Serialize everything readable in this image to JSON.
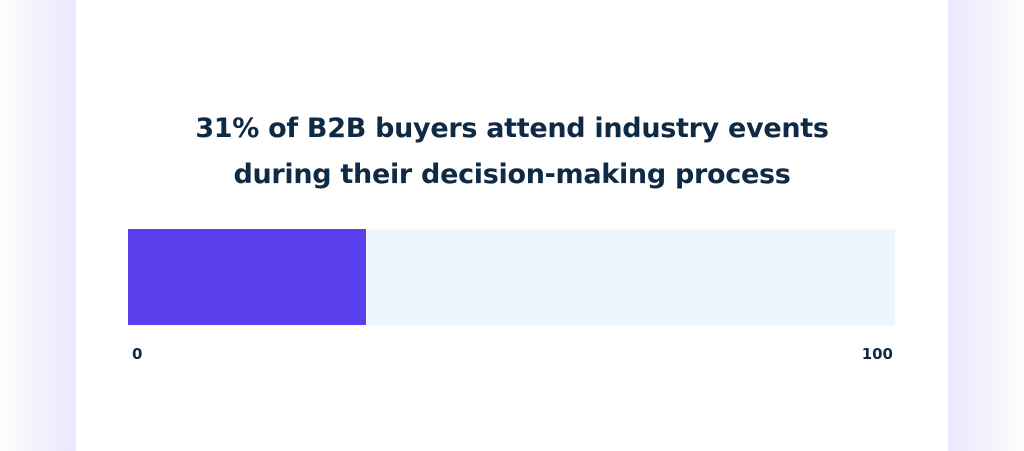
{
  "chart_data": {
    "type": "bar",
    "title_lines": [
      "31% of B2B buyers attend industry events",
      "during their decision-making process"
    ],
    "value": 31,
    "xlim": [
      0,
      100
    ],
    "tick_labels": [
      "0",
      "100"
    ],
    "colors": {
      "fill": "#5940ec",
      "track": "#eef5fe",
      "text": "#0f2a44"
    }
  }
}
